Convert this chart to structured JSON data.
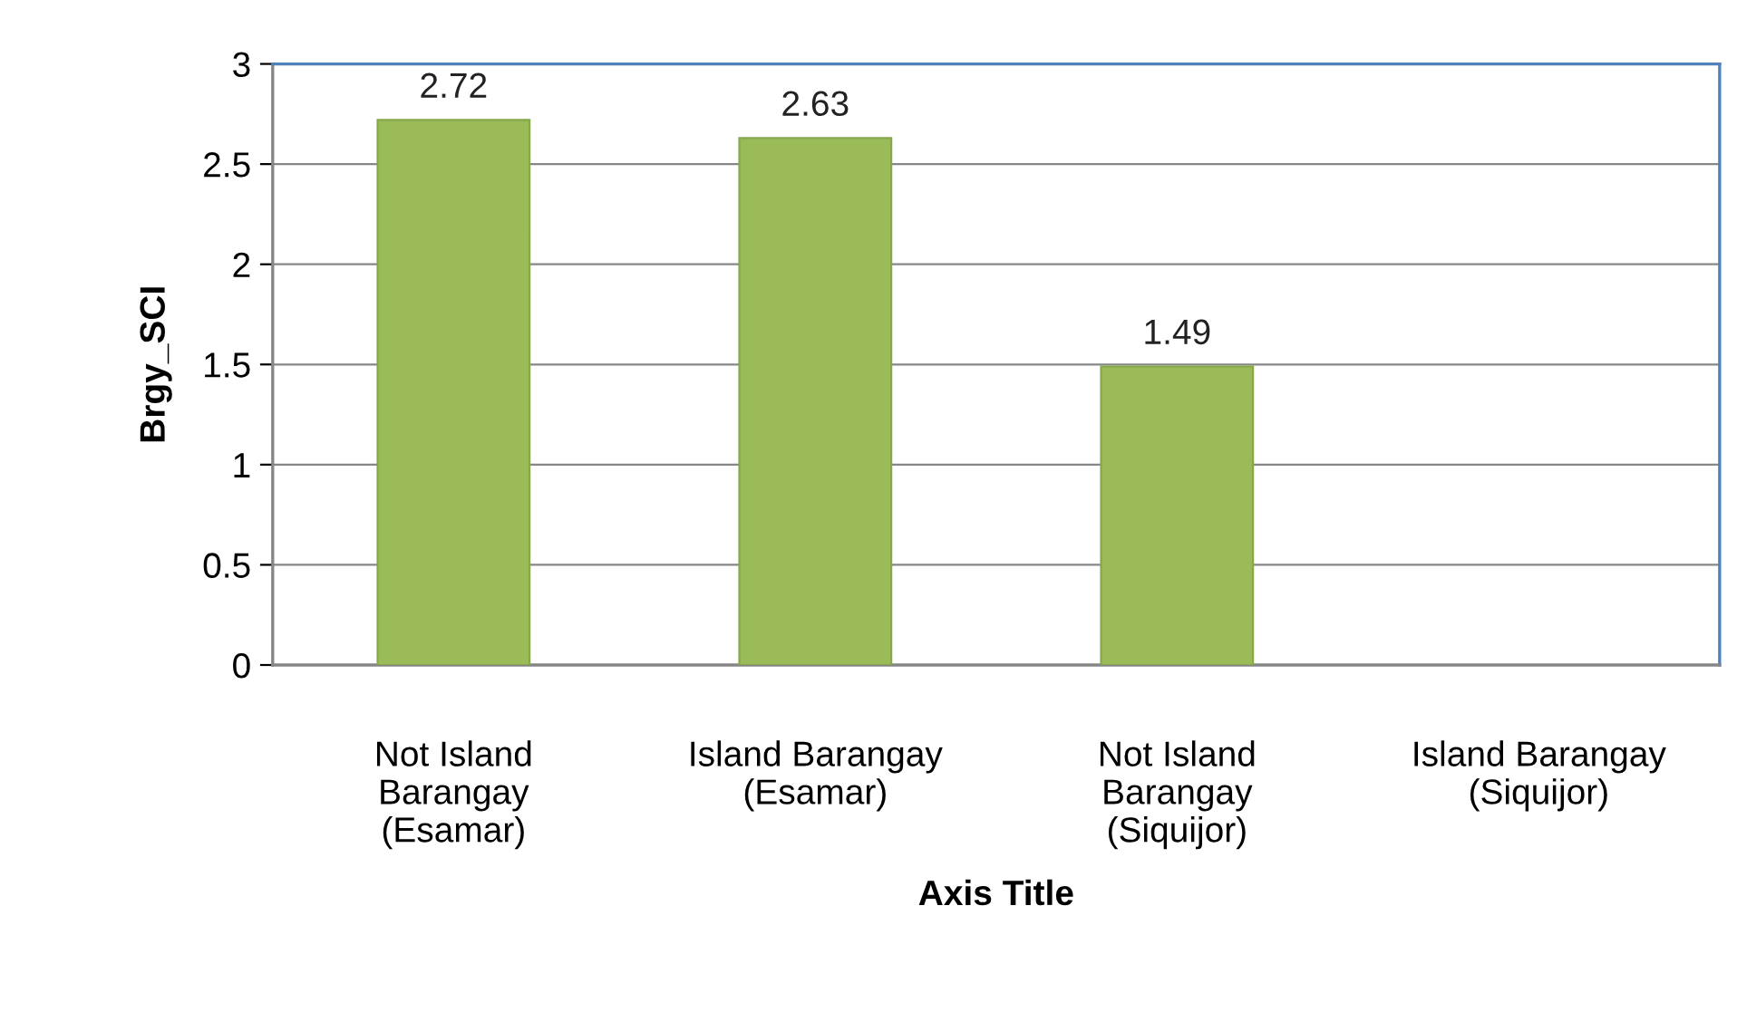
{
  "chart_data": {
    "type": "bar",
    "xlabel": "Axis Title",
    "ylabel": "Brgy_SCI",
    "categories": [
      "Not Island\nBarangay\n(Esamar)",
      "Island Barangay\n(Esamar)",
      "Not Island\nBarangay\n(Siquijor)",
      "Island Barangay\n(Siquijor)"
    ],
    "values": [
      2.72,
      2.63,
      1.49,
      null
    ],
    "value_labels": [
      "2.72",
      "2.63",
      "1.49",
      null
    ],
    "color": "#9bbb59",
    "ylim": [
      0,
      3
    ],
    "yticks": [
      0,
      0.5,
      1,
      1.5,
      2,
      2.5,
      3
    ],
    "grid": "y",
    "legend": false
  }
}
